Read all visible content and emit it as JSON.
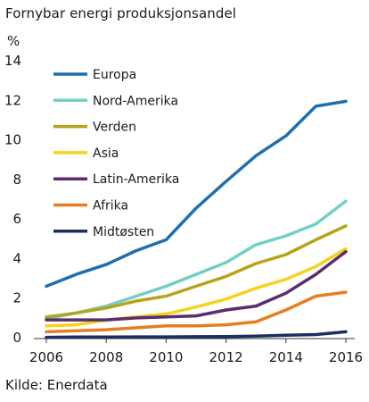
{
  "title": "Fornybar energi produksjonsandel",
  "source": "Kilde: Enerdata",
  "chart_data": {
    "type": "line",
    "ylabel": "%",
    "xlabel": "",
    "x": [
      2006,
      2007,
      2008,
      2009,
      2010,
      2011,
      2012,
      2013,
      2014,
      2015,
      2016
    ],
    "xticks": [
      2006,
      2008,
      2010,
      2012,
      2014,
      2016
    ],
    "yticks": [
      0,
      2,
      4,
      6,
      8,
      10,
      12,
      14
    ],
    "ylim": [
      0,
      14
    ],
    "xlim": [
      2006,
      2016
    ],
    "grid": false,
    "legend_position": "top-left",
    "series": [
      {
        "name": "Europa",
        "color": "#1f6fae",
        "values": [
          2.6,
          3.2,
          3.7,
          4.4,
          4.95,
          6.55,
          7.9,
          9.2,
          10.2,
          11.7,
          11.95
        ]
      },
      {
        "name": "Nord-Amerika",
        "color": "#72cfc7",
        "values": [
          0.95,
          1.25,
          1.6,
          2.1,
          2.6,
          3.2,
          3.8,
          4.7,
          5.15,
          5.75,
          6.9
        ]
      },
      {
        "name": "Verden",
        "color": "#b7a418",
        "values": [
          1.05,
          1.25,
          1.5,
          1.85,
          2.1,
          2.6,
          3.1,
          3.75,
          4.2,
          4.95,
          5.65
        ]
      },
      {
        "name": "Asia",
        "color": "#f5d31c",
        "values": [
          0.6,
          0.65,
          0.9,
          1.05,
          1.2,
          1.55,
          1.95,
          2.5,
          2.95,
          3.6,
          4.5
        ]
      },
      {
        "name": "Latin-Amerika",
        "color": "#5a2d6f",
        "values": [
          0.9,
          0.9,
          0.9,
          1.0,
          1.05,
          1.1,
          1.4,
          1.6,
          2.25,
          3.2,
          4.35
        ]
      },
      {
        "name": "Afrika",
        "color": "#e67e22",
        "values": [
          0.3,
          0.35,
          0.4,
          0.5,
          0.6,
          0.6,
          0.65,
          0.8,
          1.4,
          2.1,
          2.3
        ]
      },
      {
        "name": "Midtøsten",
        "color": "#1b2f5e",
        "values": [
          0.02,
          0.03,
          0.03,
          0.04,
          0.04,
          0.05,
          0.06,
          0.08,
          0.12,
          0.16,
          0.3
        ]
      }
    ]
  }
}
